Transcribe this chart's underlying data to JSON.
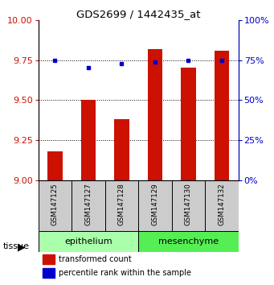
{
  "title": "GDS2699 / 1442435_at",
  "samples": [
    "GSM147125",
    "GSM147127",
    "GSM147128",
    "GSM147129",
    "GSM147130",
    "GSM147132"
  ],
  "red_values": [
    9.18,
    9.5,
    9.38,
    9.82,
    9.7,
    9.81
  ],
  "blue_values": [
    75,
    70,
    73,
    74,
    75,
    75
  ],
  "ylim_left": [
    9,
    10
  ],
  "ylim_right": [
    0,
    100
  ],
  "yticks_left": [
    9,
    9.25,
    9.5,
    9.75,
    10
  ],
  "yticks_right": [
    0,
    25,
    50,
    75,
    100
  ],
  "bar_color": "#CC1100",
  "dot_color": "#0000CC",
  "tissue_label": "tissue",
  "legend_red": "transformed count",
  "legend_blue": "percentile rank within the sample",
  "bar_width": 0.45,
  "left_tick_color": "#CC1100",
  "right_tick_color": "#0000CC",
  "epithelium_color": "#AAFFAA",
  "mesenchyme_color": "#55EE55",
  "sample_box_color": "#CCCCCC",
  "grid_yticks": [
    9.25,
    9.5,
    9.75
  ],
  "epithelium_indices": [
    0,
    1,
    2
  ],
  "mesenchyme_indices": [
    3,
    4,
    5
  ]
}
